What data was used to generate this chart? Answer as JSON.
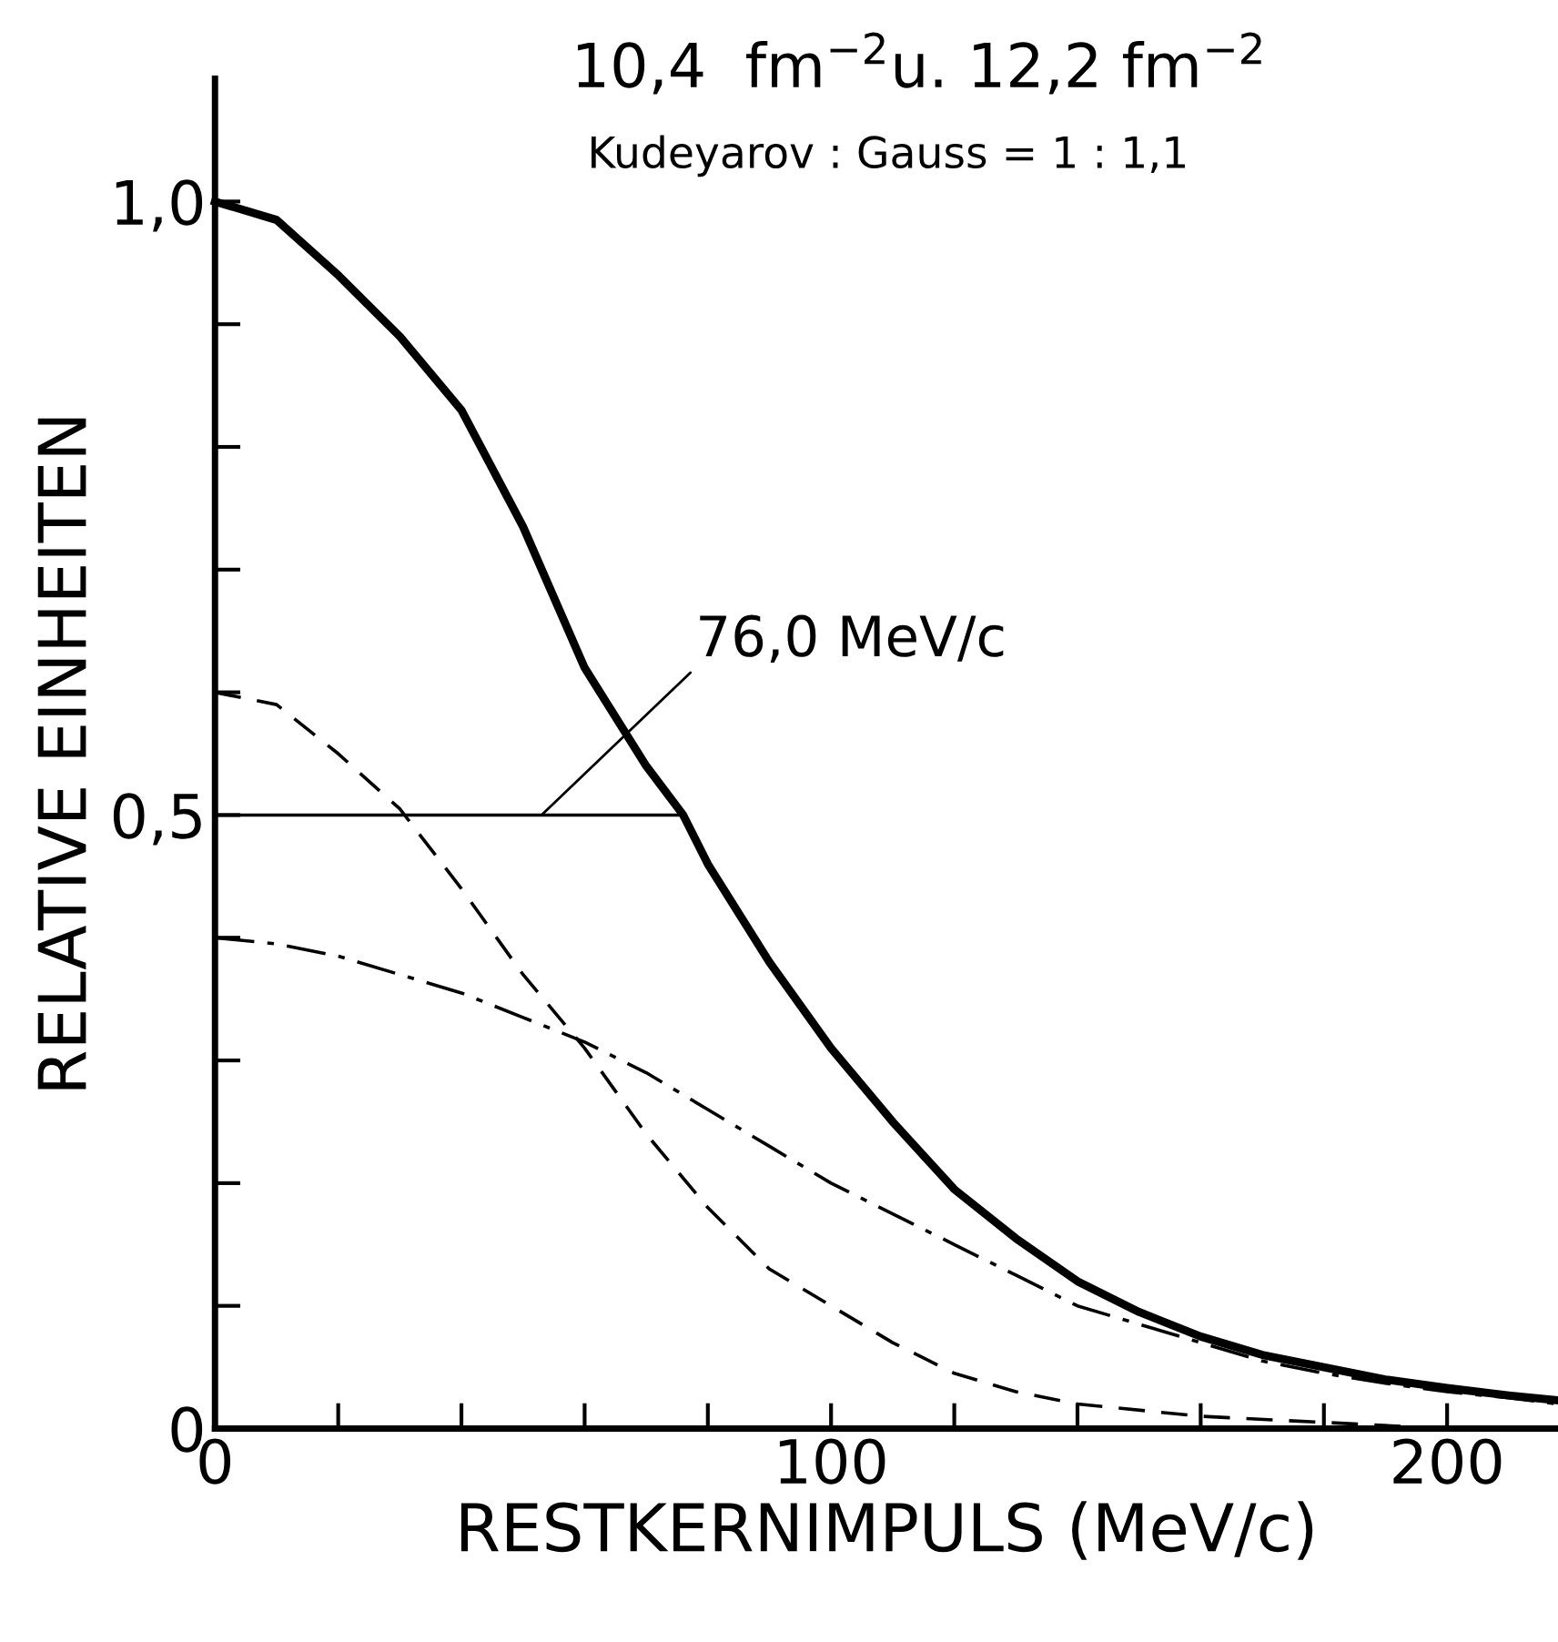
{
  "chart_data": {
    "type": "line",
    "title": "10,4  fm$^{−2}$u. 12,2 fm$^{−2}$",
    "subtitle": "Kudeyarov : Gauss = 1 : 1,1",
    "xlabel": "RESTKERNIMPULS (MeV/c)",
    "ylabel": "RELATIVE EINHEITEN",
    "xlim": [
      0,
      218
    ],
    "ylim": [
      0,
      1.1
    ],
    "xticks": [
      0,
      {
        "value": 20,
        "label": null
      },
      {
        "value": 40,
        "label": null
      },
      {
        "value": 60,
        "label": null
      },
      {
        "value": 80,
        "label": null
      },
      100,
      {
        "value": 120,
        "label": null
      },
      {
        "value": 140,
        "label": null
      },
      {
        "value": 160,
        "label": null
      },
      {
        "value": 180,
        "label": null
      },
      200
    ],
    "yticks": [
      0,
      {
        "value": 0.1,
        "label": null
      },
      {
        "value": 0.2,
        "label": null
      },
      {
        "value": 0.3,
        "label": null
      },
      {
        "value": 0.4,
        "label": null
      },
      {
        "value": 0.5,
        "label": "0,5"
      },
      {
        "value": 0.6,
        "label": null
      },
      {
        "value": 0.7,
        "label": null
      },
      {
        "value": 0.8,
        "label": null
      },
      {
        "value": 0.9,
        "label": null
      },
      {
        "value": 1.0,
        "label": "1,0"
      }
    ],
    "grid": false,
    "legend": false,
    "marker": "none",
    "series": [
      {
        "color": "#000000",
        "line_style": "solid",
        "x": [
          0,
          10,
          20,
          30,
          40,
          50,
          60,
          70,
          76,
          80,
          90,
          100,
          110,
          120,
          130,
          140,
          150,
          160,
          170,
          180,
          190,
          200,
          210,
          218
        ],
        "values": [
          1.0,
          0.985,
          0.94,
          0.89,
          0.83,
          0.735,
          0.62,
          0.54,
          0.5,
          0.46,
          0.38,
          0.31,
          0.25,
          0.195,
          0.155,
          0.12,
          0.095,
          0.075,
          0.06,
          0.05,
          0.04,
          0.033,
          0.027,
          0.023
        ]
      },
      {
        "color": "#000000",
        "line_style": "dashed",
        "x": [
          0,
          10,
          20,
          30,
          40,
          50,
          60,
          70,
          80,
          90,
          100,
          110,
          120,
          130,
          140,
          160,
          180,
          200
        ],
        "values": [
          0.6,
          0.59,
          0.55,
          0.505,
          0.44,
          0.37,
          0.31,
          0.24,
          0.18,
          0.13,
          0.1,
          0.07,
          0.045,
          0.03,
          0.02,
          0.01,
          0.005,
          0.0
        ]
      },
      {
        "color": "#000000",
        "line_style": "dashdot",
        "x": [
          0,
          10,
          20,
          30,
          40,
          50,
          60,
          70,
          80,
          90,
          100,
          110,
          120,
          130,
          140,
          150,
          160,
          170,
          180,
          190,
          200,
          210,
          218
        ],
        "values": [
          0.4,
          0.395,
          0.385,
          0.37,
          0.355,
          0.335,
          0.315,
          0.29,
          0.26,
          0.23,
          0.2,
          0.175,
          0.15,
          0.125,
          0.1,
          0.085,
          0.07,
          0.055,
          0.045,
          0.037,
          0.03,
          0.025,
          0.02
        ]
      },
      {
        "color": "#000000",
        "line_style": "solid",
        "x": [
          0,
          76
        ],
        "values": [
          0.5,
          0.5
        ]
      }
    ],
    "annotations": [
      {
        "text": "76,0 MeV/c",
        "x": 53,
        "y": 0.5
      }
    ]
  }
}
